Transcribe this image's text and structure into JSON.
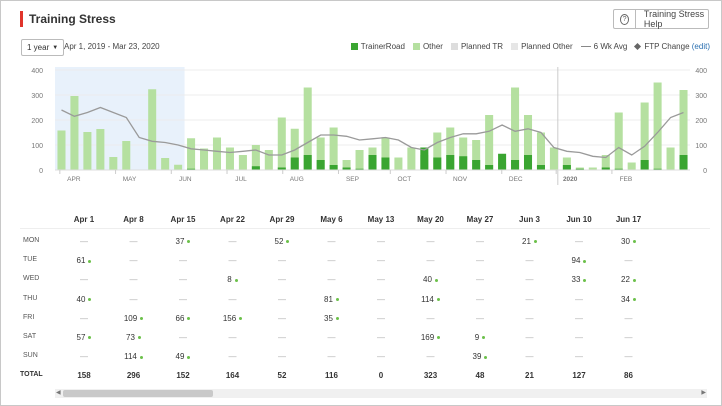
{
  "header": {
    "title": "Training Stress",
    "help_label": "Training Stress Help",
    "help_icon": "question-circle-icon"
  },
  "controls": {
    "range_label": "1 year",
    "date_range": "Apr 1, 2019 - Mar 23, 2020"
  },
  "legend": {
    "trainerroad": "TrainerRoad",
    "other": "Other",
    "planned_tr": "Planned TR",
    "planned_other": "Planned Other",
    "avg": "6 Wk Avg",
    "ftp": "FTP Change",
    "edit": "(edit)"
  },
  "colors": {
    "trainerroad": "#3aa531",
    "other": "#b5e0a0",
    "avg_line": "#9a9a9a",
    "highlight": "#e8f1fb",
    "accent": "#e0342b",
    "edit_link": "#2a6fb0"
  },
  "chart_data": {
    "type": "bar",
    "y_ticks": [
      "0",
      "100",
      "200",
      "300",
      "400"
    ],
    "ylim": [
      0,
      400
    ],
    "month_labels": [
      "APR",
      "MAY",
      "JUN",
      "JUL",
      "AUG",
      "SEP",
      "OCT",
      "NOV",
      "DEC",
      "2020",
      "FEB"
    ],
    "month_positions": [
      1.3,
      5.6,
      9.9,
      14.2,
      18.5,
      22.8,
      26.8,
      31.1,
      35.4,
      39.6,
      43.9
    ],
    "highlight_weeks": [
      0,
      10
    ],
    "year_marker_week": 38.8,
    "series": [
      {
        "name": "TrainerRoad",
        "values": [
          0,
          0,
          0,
          0,
          0,
          0,
          0,
          0,
          0,
          0,
          5,
          0,
          0,
          0,
          0,
          15,
          0,
          10,
          50,
          60,
          40,
          20,
          10,
          5,
          60,
          50,
          0,
          0,
          90,
          50,
          60,
          55,
          40,
          20,
          65,
          40,
          60,
          20,
          0,
          20,
          5,
          0,
          10,
          5,
          0,
          40,
          5,
          0,
          60
        ]
      },
      {
        "name": "Other",
        "values": [
          158,
          296,
          152,
          164,
          52,
          116,
          0,
          323,
          48,
          21,
          127,
          86,
          130,
          90,
          60,
          100,
          80,
          210,
          165,
          330,
          130,
          170,
          40,
          80,
          90,
          130,
          50,
          90,
          60,
          150,
          170,
          130,
          120,
          220,
          30,
          330,
          220,
          150,
          90,
          50,
          10,
          10,
          60,
          230,
          30,
          270,
          350,
          90,
          320
        ]
      },
      {
        "name": "6 Wk Avg",
        "values": [
          240,
          215,
          230,
          250,
          230,
          210,
          130,
          115,
          110,
          100,
          85,
          80,
          75,
          70,
          75,
          80,
          60,
          60,
          80,
          110,
          140,
          140,
          135,
          120,
          125,
          130,
          120,
          90,
          80,
          110,
          130,
          145,
          145,
          155,
          180,
          155,
          165,
          150,
          90,
          75,
          70,
          55,
          50,
          90,
          60,
          95,
          150,
          210,
          230
        ]
      }
    ],
    "table": {
      "weeks": [
        "Apr 1",
        "Apr 8",
        "Apr 15",
        "Apr 22",
        "Apr 29",
        "May 6",
        "May 13",
        "May 20",
        "May 27",
        "Jun 3",
        "Jun 10",
        "Jun 17"
      ],
      "days": [
        "MON",
        "TUE",
        "WED",
        "THU",
        "FRI",
        "SAT",
        "SUN"
      ],
      "total_label": "TOTAL",
      "cells": [
        [
          "—",
          "—",
          "37",
          "—",
          "52",
          "—",
          "—",
          "—",
          "—",
          "21",
          "—",
          "30"
        ],
        [
          "61",
          "—",
          "—",
          "—",
          "—",
          "—",
          "—",
          "—",
          "—",
          "—",
          "94",
          "—"
        ],
        [
          "—",
          "—",
          "—",
          "8",
          "—",
          "—",
          "—",
          "40",
          "—",
          "—",
          "33",
          "22"
        ],
        [
          "40",
          "—",
          "—",
          "—",
          "—",
          "81",
          "—",
          "114",
          "—",
          "—",
          "—",
          "34"
        ],
        [
          "—",
          "109",
          "66",
          "156",
          "—",
          "35",
          "—",
          "—",
          "—",
          "—",
          "—",
          "—"
        ],
        [
          "57",
          "73",
          "—",
          "—",
          "—",
          "—",
          "—",
          "169",
          "9",
          "—",
          "—",
          "—"
        ],
        [
          "—",
          "114",
          "49",
          "—",
          "—",
          "—",
          "—",
          "—",
          "39",
          "—",
          "—",
          "—"
        ]
      ],
      "totals": [
        "158",
        "296",
        "152",
        "164",
        "52",
        "116",
        "0",
        "323",
        "48",
        "21",
        "127",
        "86"
      ]
    }
  }
}
